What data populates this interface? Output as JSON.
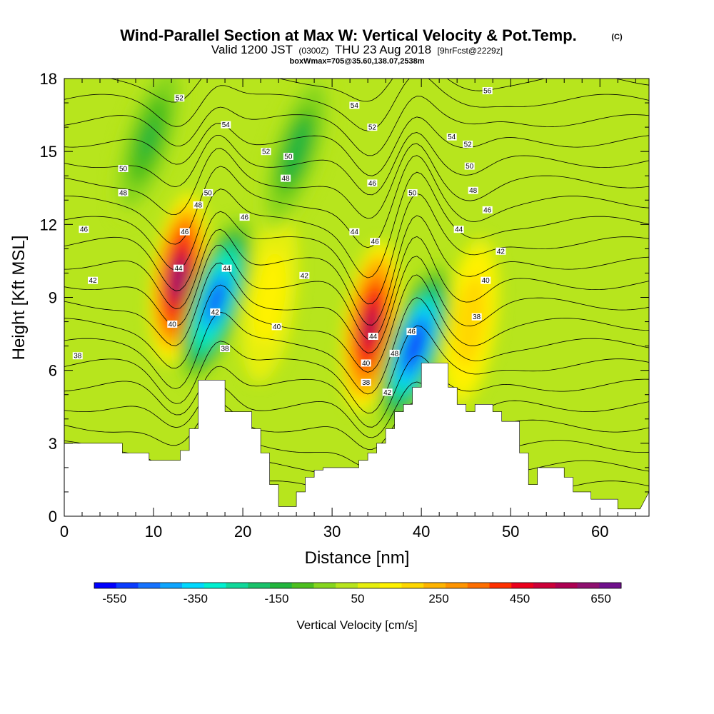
{
  "title": {
    "main": "Wind-Parallel Section at Max W: Vertical Velocity & Pot.Temp.",
    "copyright": "(C)",
    "line2_a": "Valid 1200 JST",
    "line2_b": "(0300Z)",
    "line2_c": "THU 23 Aug 2018",
    "line2_d": "[9hrFcst@2229z]",
    "line3": "boxWmax=705@35.60,138.07,2538m"
  },
  "chart_data": {
    "type": "contour-section",
    "xlabel": "Distance [nm]",
    "ylabel": "Height [Kft MSL]",
    "xlim": [
      0,
      65.5
    ],
    "ylim": [
      0,
      18
    ],
    "xticks": [
      0,
      10,
      20,
      30,
      40,
      50,
      60
    ],
    "yticks": [
      0,
      3,
      6,
      9,
      12,
      15,
      18
    ],
    "grid": false,
    "colorbar": {
      "label": "Vertical Velocity [cm/s]",
      "tick_labels": [
        "-550",
        "-350",
        "-150",
        "50",
        "250",
        "450",
        "650"
      ],
      "tick_values": [
        -550,
        -350,
        -150,
        50,
        250,
        450,
        650
      ],
      "range": [
        -600,
        700
      ],
      "colors": [
        "#0000ff",
        "#0a3cff",
        "#1673ff",
        "#0ea5ff",
        "#00d9ff",
        "#00f0d0",
        "#10d89a",
        "#19c26a",
        "#22b53c",
        "#4cbf1e",
        "#86d61e",
        "#b7e51d",
        "#e6ef0d",
        "#fff200",
        "#ffd700",
        "#ffb400",
        "#ff9400",
        "#ff6e00",
        "#ff2f00",
        "#eb001c",
        "#cc0038",
        "#ad0052",
        "#8f1070",
        "#70108c"
      ]
    },
    "velocity_field": {
      "updrafts": [
        {
          "x": 12.8,
          "y": 9.8,
          "peak": 600
        },
        {
          "x": 34.3,
          "y": 7.8,
          "peak": 560
        },
        {
          "x": 45.5,
          "y": 8.0,
          "peak": 210
        },
        {
          "x": 23.0,
          "y": 9.0,
          "peak": 140
        }
      ],
      "downdrafts": [
        {
          "x": 17.0,
          "y": 8.9,
          "peak": -520
        },
        {
          "x": 39.3,
          "y": 7.0,
          "peak": -560
        },
        {
          "x": 26.0,
          "y": 15.0,
          "peak": -150
        },
        {
          "x": 9.5,
          "y": 15.5,
          "peak": -140
        }
      ]
    },
    "terrain_kft": {
      "x": [
        0,
        6.5,
        6.5,
        9.5,
        9.5,
        13,
        13,
        14,
        14,
        15,
        15,
        18,
        18,
        21,
        21,
        22,
        22,
        23,
        23,
        24,
        24,
        26,
        26,
        27,
        27,
        28,
        28,
        29,
        29,
        33,
        33,
        34,
        34,
        35,
        35,
        36,
        36,
        37,
        37,
        38,
        38,
        39,
        39,
        40,
        40,
        43,
        43,
        44,
        44,
        45,
        45,
        46,
        46,
        48,
        48,
        49,
        49,
        51,
        51,
        52,
        52,
        53,
        53,
        56,
        56,
        57,
        57,
        59,
        59,
        62,
        62,
        64.5,
        65.5
      ],
      "y": [
        3.0,
        3.0,
        2.6,
        2.6,
        2.3,
        2.3,
        2.7,
        2.7,
        3.6,
        3.6,
        5.6,
        5.6,
        4.3,
        4.3,
        3.6,
        3.6,
        2.6,
        2.6,
        1.3,
        1.3,
        0.4,
        0.4,
        1.0,
        1.0,
        1.6,
        1.6,
        1.9,
        1.9,
        2.0,
        2.0,
        2.3,
        2.3,
        2.6,
        2.6,
        3.0,
        3.0,
        3.6,
        3.6,
        4.3,
        4.3,
        4.6,
        4.6,
        5.3,
        5.3,
        6.3,
        6.3,
        5.3,
        5.3,
        4.6,
        4.6,
        4.3,
        4.3,
        4.6,
        4.6,
        4.3,
        4.3,
        3.9,
        3.9,
        2.6,
        2.6,
        1.3,
        1.3,
        2.0,
        2.0,
        1.6,
        1.6,
        1.0,
        1.0,
        0.7,
        0.7,
        0.3,
        0.3,
        1.0
      ]
    },
    "theta_contours": {
      "levels": [
        38,
        40,
        42,
        44,
        46,
        48,
        50,
        52,
        54,
        56
      ],
      "labels": [
        {
          "text": "38",
          "x": 1.5,
          "y": 6.6
        },
        {
          "text": "40",
          "x": 12.1,
          "y": 7.9
        },
        {
          "text": "42",
          "x": 16.9,
          "y": 8.4
        },
        {
          "text": "38",
          "x": 18.0,
          "y": 6.9
        },
        {
          "text": "44",
          "x": 12.8,
          "y": 10.2
        },
        {
          "text": "44",
          "x": 18.2,
          "y": 10.2
        },
        {
          "text": "46",
          "x": 13.5,
          "y": 11.7
        },
        {
          "text": "46",
          "x": 2.2,
          "y": 11.8
        },
        {
          "text": "42",
          "x": 3.2,
          "y": 9.7
        },
        {
          "text": "48",
          "x": 15.0,
          "y": 12.8
        },
        {
          "text": "50",
          "x": 16.1,
          "y": 13.3
        },
        {
          "text": "48",
          "x": 6.6,
          "y": 13.3
        },
        {
          "text": "50",
          "x": 6.6,
          "y": 14.3
        },
        {
          "text": "52",
          "x": 12.9,
          "y": 17.2
        },
        {
          "text": "54",
          "x": 18.1,
          "y": 16.1
        },
        {
          "text": "46",
          "x": 20.2,
          "y": 12.3
        },
        {
          "text": "48",
          "x": 24.8,
          "y": 13.9
        },
        {
          "text": "52",
          "x": 22.6,
          "y": 15.0
        },
        {
          "text": "50",
          "x": 25.1,
          "y": 14.8
        },
        {
          "text": "42",
          "x": 26.9,
          "y": 9.9
        },
        {
          "text": "40",
          "x": 23.8,
          "y": 7.8
        },
        {
          "text": "54",
          "x": 32.5,
          "y": 16.9
        },
        {
          "text": "52",
          "x": 34.5,
          "y": 16.0
        },
        {
          "text": "46",
          "x": 34.5,
          "y": 13.7
        },
        {
          "text": "44",
          "x": 32.5,
          "y": 11.7
        },
        {
          "text": "46",
          "x": 34.8,
          "y": 11.3
        },
        {
          "text": "50",
          "x": 39.0,
          "y": 13.3
        },
        {
          "text": "44",
          "x": 34.6,
          "y": 7.4
        },
        {
          "text": "40",
          "x": 33.8,
          "y": 6.3
        },
        {
          "text": "38",
          "x": 33.8,
          "y": 5.5
        },
        {
          "text": "42",
          "x": 36.2,
          "y": 5.1
        },
        {
          "text": "48",
          "x": 37.0,
          "y": 6.7
        },
        {
          "text": "46",
          "x": 38.9,
          "y": 7.6
        },
        {
          "text": "54",
          "x": 43.4,
          "y": 15.6
        },
        {
          "text": "52",
          "x": 45.2,
          "y": 15.3
        },
        {
          "text": "50",
          "x": 45.4,
          "y": 14.4
        },
        {
          "text": "56",
          "x": 47.4,
          "y": 17.5
        },
        {
          "text": "48",
          "x": 45.8,
          "y": 13.4
        },
        {
          "text": "46",
          "x": 47.4,
          "y": 12.6
        },
        {
          "text": "44",
          "x": 44.2,
          "y": 11.8
        },
        {
          "text": "42",
          "x": 48.9,
          "y": 10.9
        },
        {
          "text": "40",
          "x": 47.2,
          "y": 9.7
        },
        {
          "text": "38",
          "x": 46.2,
          "y": 8.2
        }
      ]
    }
  }
}
